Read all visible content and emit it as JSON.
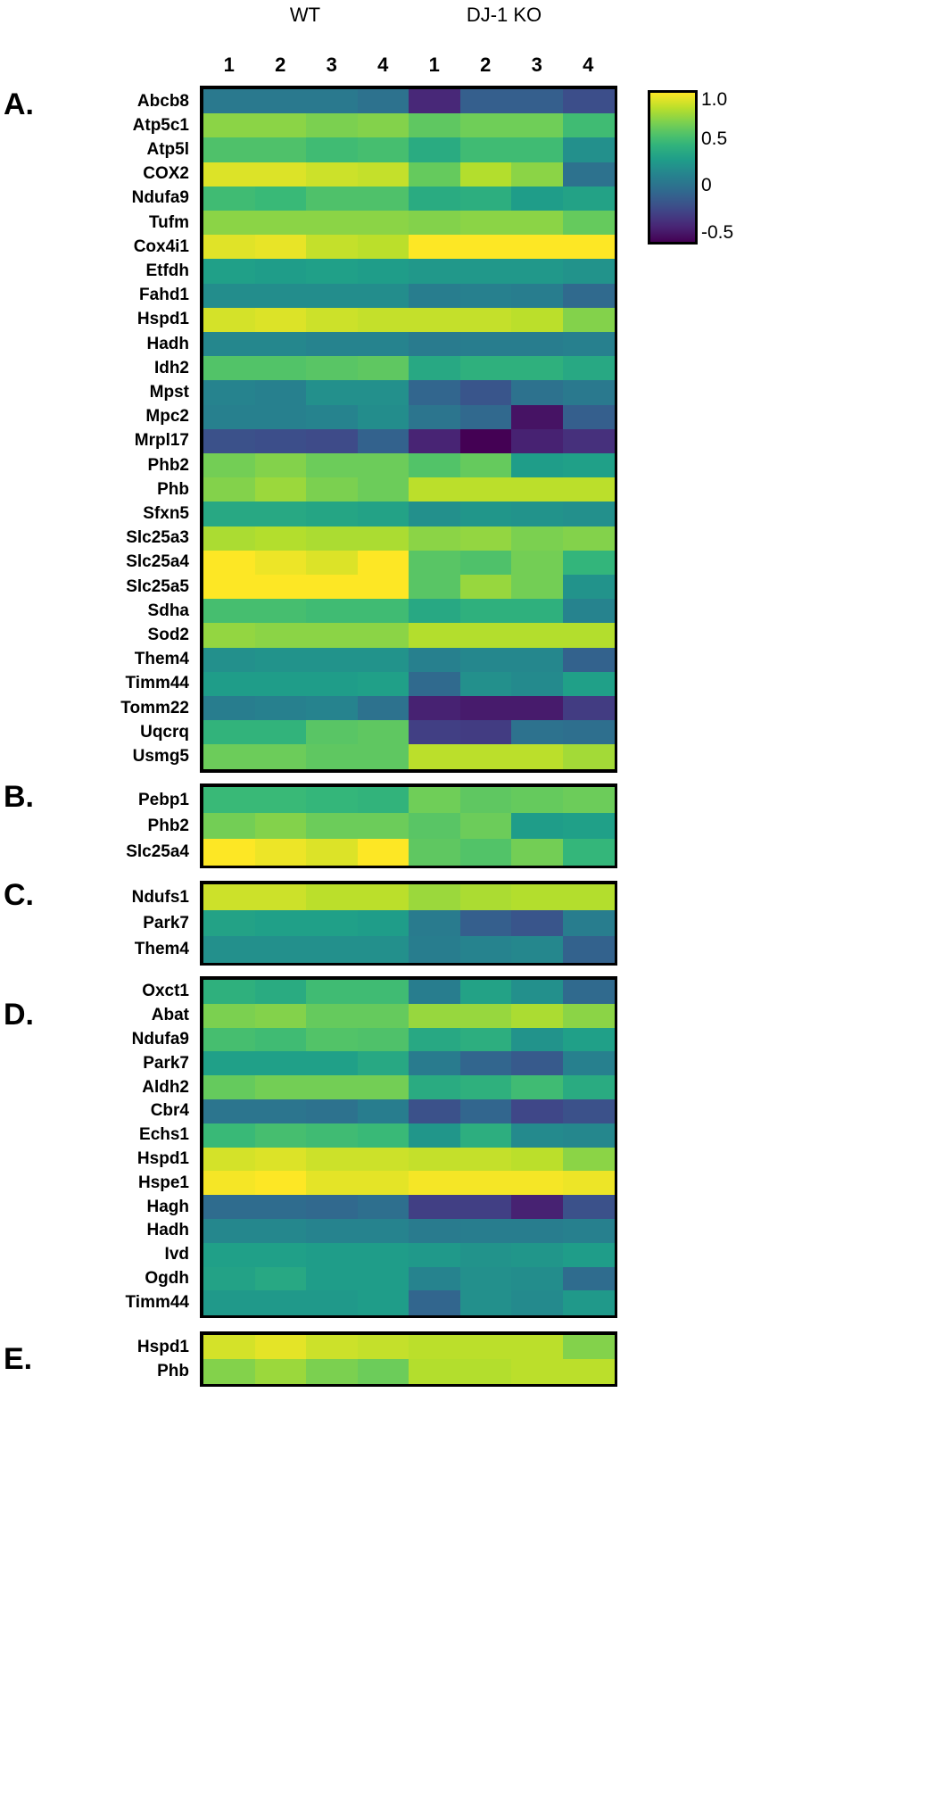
{
  "chart_data": {
    "type": "heatmap",
    "groups": [
      "WT",
      "DJ-1 KO"
    ],
    "columns": [
      "1",
      "2",
      "3",
      "4",
      "1",
      "2",
      "3",
      "4"
    ],
    "colorbar": {
      "colormap": "viridis",
      "range": [
        -0.6,
        1.0
      ],
      "ticks": [
        1.0,
        0.5,
        0,
        -0.5
      ],
      "tick_labels": [
        "1.0",
        "0.5",
        "0",
        "-0.5"
      ]
    },
    "panels": [
      {
        "label": "A.",
        "rows": [
          {
            "gene": "Abcb8",
            "values": [
              0.05,
              0.05,
              0.05,
              0.0,
              -0.42,
              -0.12,
              -0.12,
              -0.22
            ]
          },
          {
            "gene": "Atp5c1",
            "values": [
              0.72,
              0.72,
              0.68,
              0.7,
              0.6,
              0.65,
              0.65,
              0.5
            ]
          },
          {
            "gene": "Atp5l",
            "values": [
              0.55,
              0.55,
              0.5,
              0.52,
              0.38,
              0.5,
              0.5,
              0.2
            ]
          },
          {
            "gene": "COX2",
            "values": [
              0.92,
              0.92,
              0.88,
              0.86,
              0.62,
              0.82,
              0.72,
              0.0
            ]
          },
          {
            "gene": "Ndufa9",
            "values": [
              0.5,
              0.48,
              0.55,
              0.55,
              0.38,
              0.4,
              0.28,
              0.32
            ]
          },
          {
            "gene": "Tufm",
            "values": [
              0.72,
              0.72,
              0.72,
              0.72,
              0.7,
              0.72,
              0.72,
              0.62
            ]
          },
          {
            "gene": "Cox4i1",
            "values": [
              0.93,
              0.95,
              0.86,
              0.84,
              1.0,
              1.0,
              1.0,
              1.0
            ]
          },
          {
            "gene": "Etfdh",
            "values": [
              0.3,
              0.28,
              0.3,
              0.28,
              0.25,
              0.25,
              0.25,
              0.22
            ]
          },
          {
            "gene": "Fahd1",
            "values": [
              0.18,
              0.18,
              0.18,
              0.18,
              0.08,
              0.1,
              0.08,
              -0.05
            ]
          },
          {
            "gene": "Hspd1",
            "values": [
              0.9,
              0.92,
              0.88,
              0.86,
              0.86,
              0.86,
              0.84,
              0.7
            ]
          },
          {
            "gene": "Hadh",
            "values": [
              0.14,
              0.14,
              0.12,
              0.12,
              0.06,
              0.08,
              0.08,
              0.1
            ]
          },
          {
            "gene": "Idh2",
            "values": [
              0.56,
              0.56,
              0.58,
              0.6,
              0.36,
              0.42,
              0.42,
              0.36
            ]
          },
          {
            "gene": "Mpst",
            "values": [
              0.12,
              0.1,
              0.2,
              0.2,
              -0.08,
              -0.18,
              0.0,
              0.05
            ]
          },
          {
            "gene": "Mpc2",
            "values": [
              0.1,
              0.1,
              0.12,
              0.18,
              0.02,
              -0.06,
              -0.52,
              -0.12
            ]
          },
          {
            "gene": "Mrpl17",
            "values": [
              -0.2,
              -0.22,
              -0.24,
              -0.1,
              -0.44,
              -0.6,
              -0.45,
              -0.38
            ]
          },
          {
            "gene": "Phb2",
            "values": [
              0.66,
              0.7,
              0.64,
              0.64,
              0.56,
              0.62,
              0.28,
              0.3
            ]
          },
          {
            "gene": "Phb",
            "values": [
              0.7,
              0.76,
              0.68,
              0.64,
              0.84,
              0.84,
              0.84,
              0.84
            ]
          },
          {
            "gene": "Sfxn5",
            "values": [
              0.36,
              0.36,
              0.34,
              0.32,
              0.2,
              0.24,
              0.22,
              0.2
            ]
          },
          {
            "gene": "Slc25a3",
            "values": [
              0.8,
              0.82,
              0.8,
              0.8,
              0.72,
              0.74,
              0.68,
              0.7
            ]
          },
          {
            "gene": "Slc25a4",
            "values": [
              1.0,
              0.96,
              0.92,
              1.0,
              0.58,
              0.55,
              0.66,
              0.45
            ]
          },
          {
            "gene": "Slc25a5",
            "values": [
              1.0,
              1.0,
              1.0,
              1.0,
              0.58,
              0.75,
              0.66,
              0.22
            ]
          },
          {
            "gene": "Sdha",
            "values": [
              0.52,
              0.52,
              0.5,
              0.5,
              0.36,
              0.42,
              0.42,
              0.12
            ]
          },
          {
            "gene": "Sod2",
            "values": [
              0.74,
              0.72,
              0.72,
              0.72,
              0.82,
              0.82,
              0.82,
              0.82
            ]
          },
          {
            "gene": "Them4",
            "values": [
              0.2,
              0.22,
              0.22,
              0.22,
              0.1,
              0.14,
              0.14,
              -0.1
            ]
          },
          {
            "gene": "Timm44",
            "values": [
              0.28,
              0.28,
              0.28,
              0.3,
              -0.05,
              0.2,
              0.16,
              0.3
            ]
          },
          {
            "gene": "Tomm22",
            "values": [
              0.08,
              0.1,
              0.12,
              0.0,
              -0.45,
              -0.48,
              -0.48,
              -0.32
            ]
          },
          {
            "gene": "Uqcrq",
            "values": [
              0.44,
              0.44,
              0.58,
              0.6,
              -0.3,
              -0.32,
              0.0,
              -0.02
            ]
          },
          {
            "gene": "Usmg5",
            "values": [
              0.64,
              0.64,
              0.6,
              0.6,
              0.84,
              0.84,
              0.84,
              0.78
            ]
          }
        ]
      },
      {
        "label": "B.",
        "rows": [
          {
            "gene": "Pebp1",
            "values": [
              0.48,
              0.48,
              0.46,
              0.44,
              0.65,
              0.6,
              0.62,
              0.64
            ]
          },
          {
            "gene": "Phb2",
            "values": [
              0.66,
              0.7,
              0.64,
              0.64,
              0.58,
              0.64,
              0.28,
              0.3
            ]
          },
          {
            "gene": "Slc25a4",
            "values": [
              1.0,
              0.96,
              0.92,
              1.0,
              0.6,
              0.56,
              0.66,
              0.46
            ]
          }
        ]
      },
      {
        "label": "C.",
        "rows": [
          {
            "gene": "Ndufs1",
            "values": [
              0.88,
              0.88,
              0.84,
              0.84,
              0.76,
              0.8,
              0.82,
              0.82
            ]
          },
          {
            "gene": "Park7",
            "values": [
              0.32,
              0.3,
              0.3,
              0.28,
              0.06,
              -0.12,
              -0.18,
              0.08
            ]
          },
          {
            "gene": "Them4",
            "values": [
              0.2,
              0.2,
              0.2,
              0.2,
              0.08,
              0.12,
              0.14,
              -0.1
            ]
          }
        ]
      },
      {
        "label": "D.",
        "rows": [
          {
            "gene": "Oxct1",
            "values": [
              0.42,
              0.38,
              0.5,
              0.5,
              0.08,
              0.32,
              0.2,
              -0.05
            ]
          },
          {
            "gene": "Abat",
            "values": [
              0.68,
              0.7,
              0.62,
              0.62,
              0.75,
              0.75,
              0.8,
              0.72
            ]
          },
          {
            "gene": "Ndufa9",
            "values": [
              0.52,
              0.5,
              0.56,
              0.55,
              0.36,
              0.4,
              0.22,
              0.3
            ]
          },
          {
            "gene": "Park7",
            "values": [
              0.3,
              0.3,
              0.3,
              0.36,
              0.06,
              -0.08,
              -0.15,
              0.1
            ]
          },
          {
            "gene": "Aldh2",
            "values": [
              0.62,
              0.66,
              0.66,
              0.66,
              0.38,
              0.42,
              0.5,
              0.38
            ]
          },
          {
            "gene": "Cbr4",
            "values": [
              0.02,
              0.02,
              0.0,
              0.08,
              -0.2,
              -0.08,
              -0.26,
              -0.2
            ]
          },
          {
            "gene": "Echs1",
            "values": [
              0.48,
              0.52,
              0.5,
              0.48,
              0.24,
              0.4,
              0.16,
              0.14
            ]
          },
          {
            "gene": "Hspd1",
            "values": [
              0.9,
              0.92,
              0.88,
              0.88,
              0.86,
              0.86,
              0.84,
              0.72
            ]
          },
          {
            "gene": "Hspe1",
            "values": [
              0.98,
              1.0,
              0.94,
              0.94,
              0.98,
              0.98,
              0.98,
              0.96
            ]
          },
          {
            "gene": "Hagh",
            "values": [
              -0.04,
              -0.04,
              -0.06,
              -0.02,
              -0.3,
              -0.3,
              -0.45,
              -0.2
            ]
          },
          {
            "gene": "Hadh",
            "values": [
              0.14,
              0.14,
              0.12,
              0.12,
              0.06,
              0.08,
              0.08,
              0.1
            ]
          },
          {
            "gene": "Ivd",
            "values": [
              0.3,
              0.3,
              0.28,
              0.28,
              0.26,
              0.22,
              0.24,
              0.28
            ]
          },
          {
            "gene": "Ogdh",
            "values": [
              0.32,
              0.36,
              0.28,
              0.28,
              0.12,
              0.2,
              0.18,
              -0.04
            ]
          },
          {
            "gene": "Timm44",
            "values": [
              0.26,
              0.26,
              0.26,
              0.28,
              -0.08,
              0.2,
              0.16,
              0.26
            ]
          }
        ]
      },
      {
        "label": "E.",
        "rows": [
          {
            "gene": "Hspd1",
            "values": [
              0.9,
              0.94,
              0.88,
              0.86,
              0.84,
              0.84,
              0.84,
              0.7
            ]
          },
          {
            "gene": "Phb",
            "values": [
              0.7,
              0.76,
              0.68,
              0.64,
              0.82,
              0.82,
              0.84,
              0.84
            ]
          }
        ]
      }
    ]
  }
}
